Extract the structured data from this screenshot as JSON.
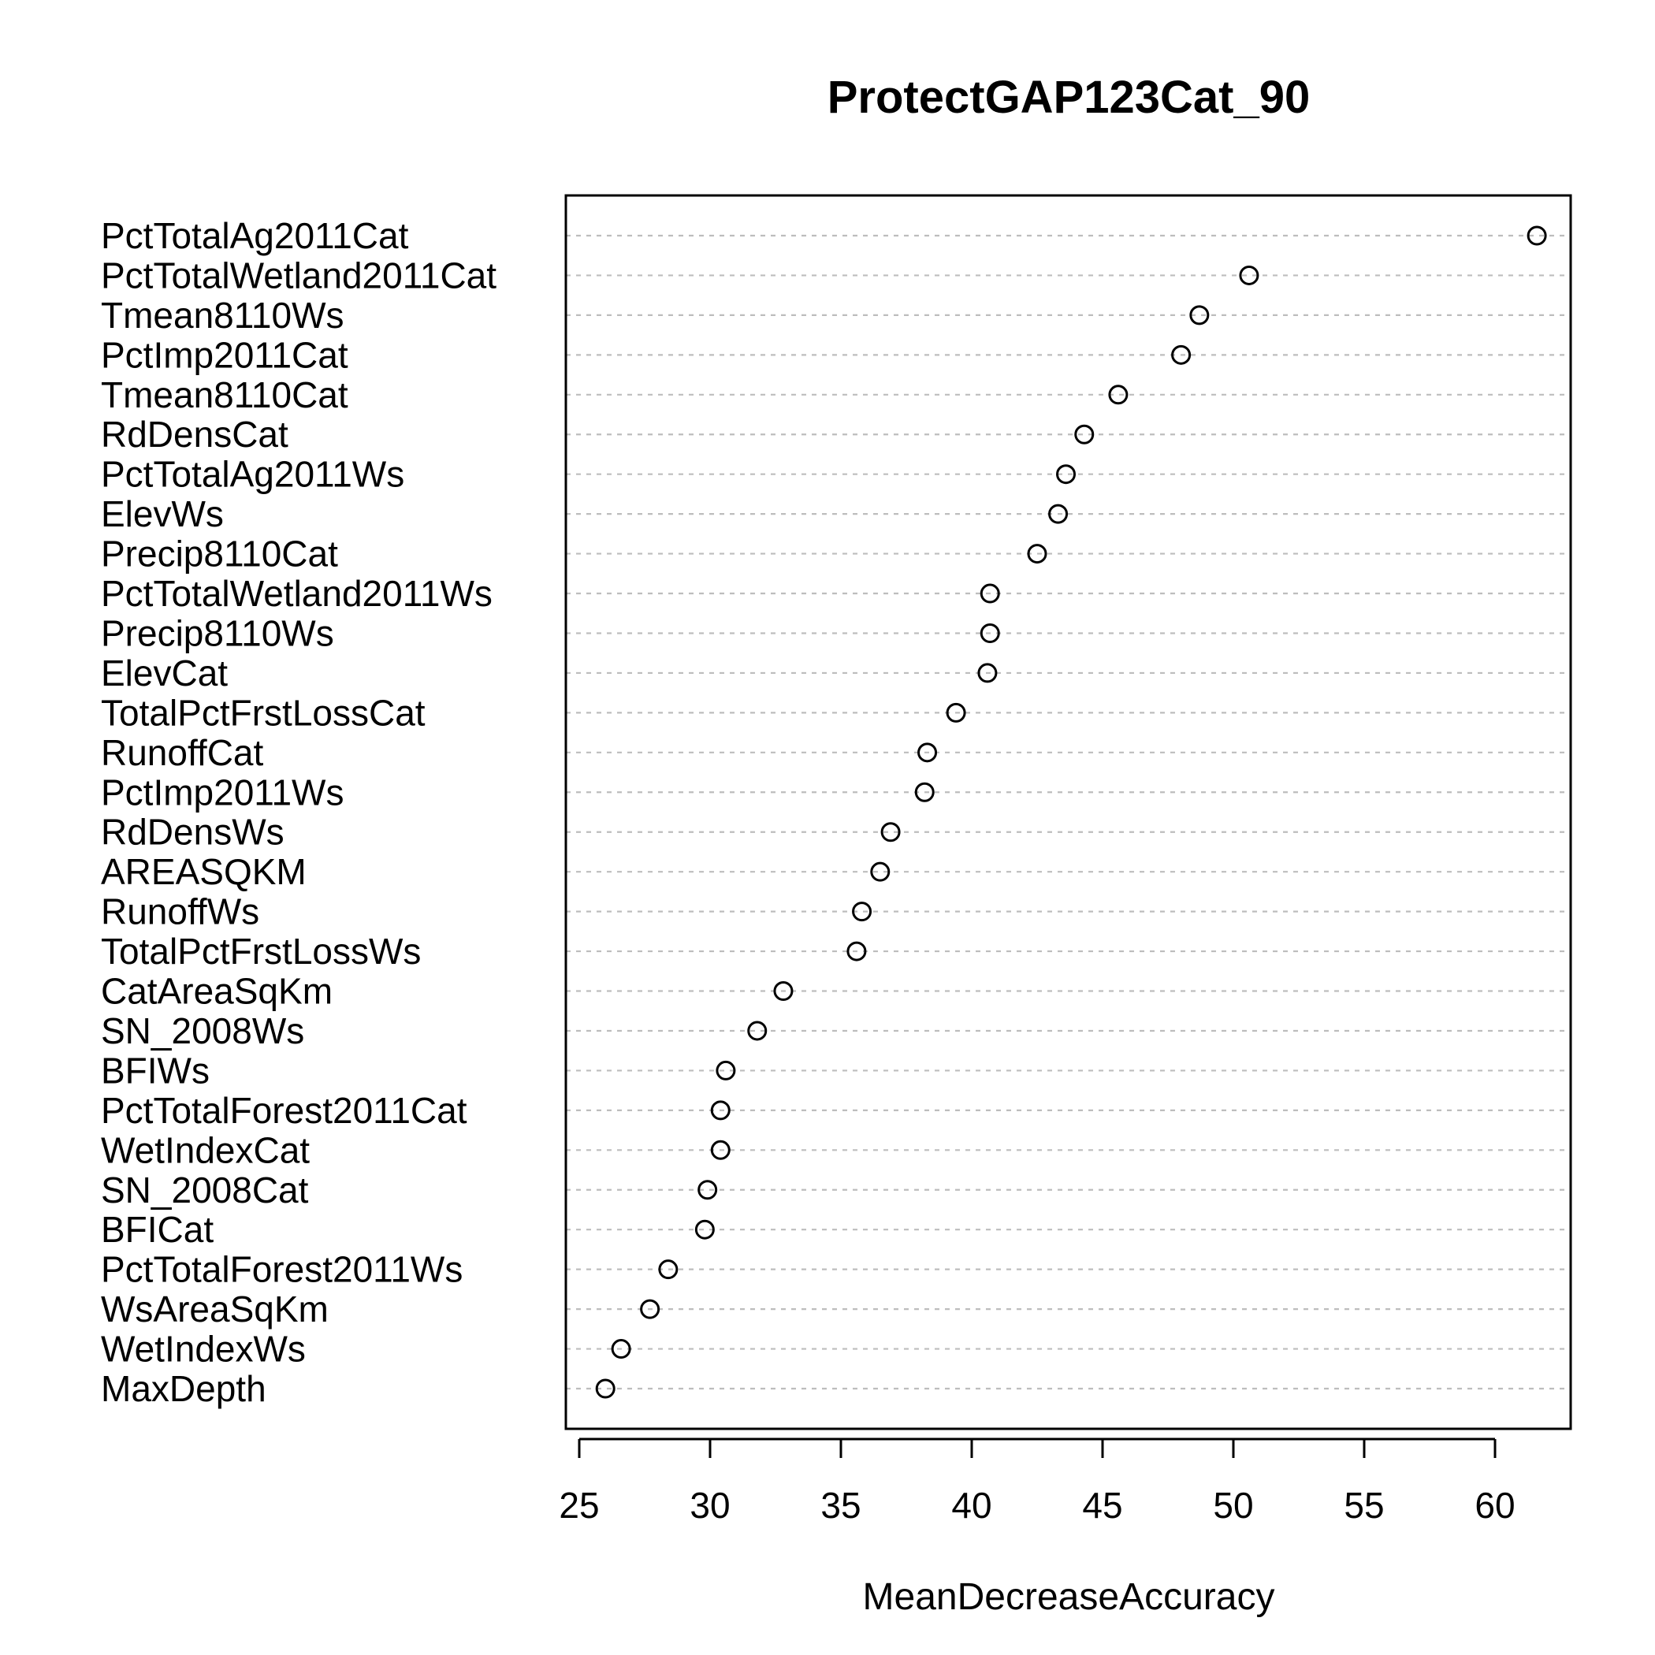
{
  "chart_data": {
    "type": "scatter",
    "subtype": "dotchart",
    "title": "ProtectGAP123Cat_90",
    "xlabel": "MeanDecreaseAccuracy",
    "ylabel": "",
    "xlim": [
      24.5,
      63
    ],
    "xticks": [
      25,
      30,
      35,
      40,
      45,
      50,
      55,
      60
    ],
    "grid": "dotted horizontal guide line per variable",
    "marker": "open circle",
    "categories": [
      "PctTotalAg2011Cat",
      "PctTotalWetland2011Cat",
      "Tmean8110Ws",
      "PctImp2011Cat",
      "Tmean8110Cat",
      "RdDensCat",
      "PctTotalAg2011Ws",
      "ElevWs",
      "Precip8110Cat",
      "PctTotalWetland2011Ws",
      "Precip8110Ws",
      "ElevCat",
      "TotalPctFrstLossCat",
      "RunoffCat",
      "PctImp2011Ws",
      "RdDensWs",
      "AREASQKM",
      "RunoffWs",
      "TotalPctFrstLossWs",
      "CatAreaSqKm",
      "SN_2008Ws",
      "BFIWs",
      "PctTotalForest2011Cat",
      "WetIndexCat",
      "SN_2008Cat",
      "BFICat",
      "PctTotalForest2011Ws",
      "WsAreaSqKm",
      "WetIndexWs",
      "MaxDepth"
    ],
    "values": [
      61.6,
      50.6,
      48.7,
      48.0,
      45.6,
      44.3,
      43.6,
      43.3,
      42.5,
      40.7,
      40.7,
      40.6,
      39.4,
      38.3,
      38.2,
      36.9,
      36.5,
      35.8,
      35.6,
      32.8,
      31.8,
      30.6,
      30.4,
      30.4,
      29.9,
      29.8,
      28.4,
      27.7,
      26.6,
      26.0
    ]
  }
}
